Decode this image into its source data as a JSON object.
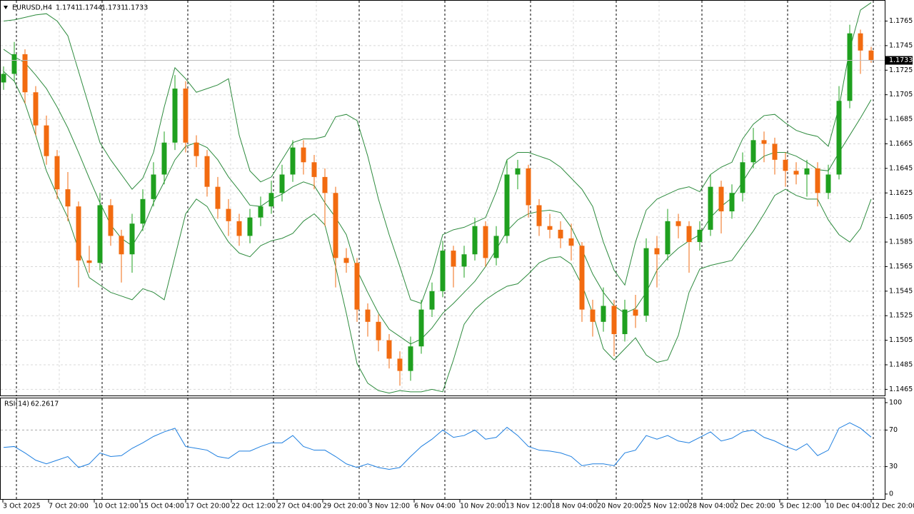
{
  "chart_data": {
    "type": "candlestick",
    "symbol": "EURUSD,H4",
    "up_color": "#1fa01f",
    "down_color": "#f26b10",
    "ylim": [
      1.146,
      1.1781
    ],
    "yticks": [
      1.1765,
      1.1745,
      1.1725,
      1.1705,
      1.1685,
      1.1665,
      1.1645,
      1.1625,
      1.1605,
      1.1585,
      1.1565,
      1.1545,
      1.1525,
      1.1505,
      1.1485,
      1.1465
    ],
    "grid": true,
    "x_labels": [
      "3 Oct 2025",
      "7 Oct 20:00",
      "10 Oct 12:00",
      "15 Oct 04:00",
      "17 Oct 20:00",
      "22 Oct 12:00",
      "27 Oct 04:00",
      "29 Oct 20:00",
      "3 Nov 12:00",
      "6 Nov 04:00",
      "10 Nov 20:00",
      "13 Nov 12:00",
      "18 Nov 04:00",
      "20 Nov 20:00",
      "25 Nov 12:00",
      "28 Nov 04:00",
      "2 Dec 20:00",
      "5 Dec 12:00",
      "10 Dec 04:00",
      "12 Dec 20:00"
    ],
    "ohlc": [
      [
        1.1715,
        1.1728,
        1.1709,
        1.1722
      ],
      [
        1.1722,
        1.1748,
        1.1716,
        1.1738
      ],
      [
        1.1738,
        1.1742,
        1.1698,
        1.1707
      ],
      [
        1.1707,
        1.1712,
        1.1672,
        1.168
      ],
      [
        1.168,
        1.1688,
        1.1648,
        1.1655
      ],
      [
        1.1655,
        1.166,
        1.162,
        1.1628
      ],
      [
        1.1628,
        1.1642,
        1.1602,
        1.1614
      ],
      [
        1.1614,
        1.1618,
        1.1548,
        1.157
      ],
      [
        1.157,
        1.1582,
        1.156,
        1.1568
      ],
      [
        1.1568,
        1.1625,
        1.1562,
        1.1615
      ],
      [
        1.1615,
        1.162,
        1.1582,
        1.159
      ],
      [
        1.159,
        1.1595,
        1.1552,
        1.1575
      ],
      [
        1.1575,
        1.1608,
        1.156,
        1.16
      ],
      [
        1.16,
        1.1628,
        1.1594,
        1.162
      ],
      [
        1.162,
        1.165,
        1.1614,
        1.164
      ],
      [
        1.164,
        1.1675,
        1.1632,
        1.1666
      ],
      [
        1.1666,
        1.1721,
        1.166,
        1.171
      ],
      [
        1.171,
        1.1716,
        1.1658,
        1.1666
      ],
      [
        1.1666,
        1.1672,
        1.1646,
        1.1655
      ],
      [
        1.1655,
        1.166,
        1.1622,
        1.163
      ],
      [
        1.163,
        1.1638,
        1.1604,
        1.1612
      ],
      [
        1.1612,
        1.162,
        1.159,
        1.1602
      ],
      [
        1.1602,
        1.1608,
        1.1582,
        1.159
      ],
      [
        1.159,
        1.1612,
        1.1584,
        1.1605
      ],
      [
        1.1605,
        1.1622,
        1.1598,
        1.1614
      ],
      [
        1.1614,
        1.1635,
        1.1608,
        1.1625
      ],
      [
        1.1625,
        1.1648,
        1.1618,
        1.164
      ],
      [
        1.164,
        1.1668,
        1.1634,
        1.1662
      ],
      [
        1.1662,
        1.1668,
        1.164,
        1.165
      ],
      [
        1.165,
        1.1656,
        1.1628,
        1.1638
      ],
      [
        1.1638,
        1.1645,
        1.1598,
        1.1625
      ],
      [
        1.1625,
        1.163,
        1.1548,
        1.1572
      ],
      [
        1.1572,
        1.158,
        1.156,
        1.1568
      ],
      [
        1.1568,
        1.1572,
        1.152,
        1.153
      ],
      [
        1.153,
        1.1535,
        1.1508,
        1.152
      ],
      [
        1.152,
        1.1526,
        1.1496,
        1.1505
      ],
      [
        1.1505,
        1.151,
        1.1482,
        1.149
      ],
      [
        1.149,
        1.1496,
        1.1468,
        1.148
      ],
      [
        1.148,
        1.1508,
        1.1472,
        1.15
      ],
      [
        1.15,
        1.1538,
        1.1494,
        1.153
      ],
      [
        1.153,
        1.1552,
        1.1524,
        1.1545
      ],
      [
        1.1545,
        1.1586,
        1.154,
        1.1578
      ],
      [
        1.1578,
        1.1582,
        1.1548,
        1.1565
      ],
      [
        1.1565,
        1.1582,
        1.1556,
        1.1575
      ],
      [
        1.1575,
        1.1605,
        1.157,
        1.1598
      ],
      [
        1.1598,
        1.1602,
        1.1565,
        1.1572
      ],
      [
        1.1572,
        1.1598,
        1.1566,
        1.159
      ],
      [
        1.159,
        1.1652,
        1.1584,
        1.164
      ],
      [
        1.164,
        1.1652,
        1.1628,
        1.1645
      ],
      [
        1.1645,
        1.1648,
        1.1605,
        1.1615
      ],
      [
        1.1615,
        1.162,
        1.159,
        1.1598
      ],
      [
        1.1598,
        1.1608,
        1.1588,
        1.1595
      ],
      [
        1.1595,
        1.1602,
        1.158,
        1.1588
      ],
      [
        1.1588,
        1.16,
        1.157,
        1.1582
      ],
      [
        1.1582,
        1.1585,
        1.152,
        1.153
      ],
      [
        1.153,
        1.1538,
        1.1508,
        1.152
      ],
      [
        1.152,
        1.1548,
        1.1512,
        1.1533
      ],
      [
        1.1533,
        1.1538,
        1.1492,
        1.151
      ],
      [
        1.151,
        1.1538,
        1.1504,
        1.153
      ],
      [
        1.153,
        1.1542,
        1.1515,
        1.1525
      ],
      [
        1.1525,
        1.1588,
        1.152,
        1.158
      ],
      [
        1.158,
        1.159,
        1.1548,
        1.1575
      ],
      [
        1.1575,
        1.1612,
        1.157,
        1.1602
      ],
      [
        1.1602,
        1.1608,
        1.1588,
        1.1598
      ],
      [
        1.1598,
        1.1602,
        1.156,
        1.1585
      ],
      [
        1.1585,
        1.1602,
        1.1578,
        1.1595
      ],
      [
        1.1595,
        1.164,
        1.159,
        1.163
      ],
      [
        1.163,
        1.1635,
        1.1592,
        1.161
      ],
      [
        1.161,
        1.1632,
        1.1604,
        1.1625
      ],
      [
        1.1625,
        1.1658,
        1.1618,
        1.165
      ],
      [
        1.165,
        1.1678,
        1.1645,
        1.1668
      ],
      [
        1.1668,
        1.1675,
        1.165,
        1.1665
      ],
      [
        1.1665,
        1.167,
        1.164,
        1.1652
      ],
      [
        1.1652,
        1.1658,
        1.163,
        1.1643
      ],
      [
        1.1643,
        1.165,
        1.1632,
        1.164
      ],
      [
        1.164,
        1.1652,
        1.1622,
        1.1645
      ],
      [
        1.1645,
        1.165,
        1.1614,
        1.1625
      ],
      [
        1.1625,
        1.1648,
        1.162,
        1.164
      ],
      [
        1.164,
        1.1712,
        1.1636,
        1.17
      ],
      [
        1.17,
        1.1762,
        1.1694,
        1.1755
      ],
      [
        1.1755,
        1.1758,
        1.1722,
        1.1741
      ],
      [
        1.1741,
        1.1744,
        1.1731,
        1.1733
      ]
    ],
    "bands": [
      {
        "color": "#2e8b3e",
        "values": [
          1.1765,
          1.1766,
          1.1768,
          1.177,
          1.1771,
          1.1765,
          1.1753,
          1.1724,
          1.1695,
          1.1666,
          1.1652,
          1.164,
          1.1628,
          1.1637,
          1.1658,
          1.1695,
          1.1727,
          1.1718,
          1.1707,
          1.171,
          1.1713,
          1.1718,
          1.1672,
          1.1643,
          1.1634,
          1.1638,
          1.1652,
          1.1666,
          1.1669,
          1.1669,
          1.1671,
          1.1687,
          1.1689,
          1.1684,
          1.1655,
          1.162,
          1.1591,
          1.1565,
          1.1538,
          1.1535,
          1.1559,
          1.1591,
          1.1595,
          1.1597,
          1.1601,
          1.1605,
          1.1626,
          1.1652,
          1.1658,
          1.1658,
          1.1655,
          1.1652,
          1.1646,
          1.1637,
          1.1628,
          1.1614,
          1.1585,
          1.1562,
          1.155,
          1.1585,
          1.1611,
          1.162,
          1.1624,
          1.1628,
          1.163,
          1.1626,
          1.164,
          1.1646,
          1.165,
          1.1669,
          1.1681,
          1.1688,
          1.1689,
          1.1682,
          1.1676,
          1.1673,
          1.1671,
          1.1663,
          1.1695,
          1.1742,
          1.1774,
          1.178
        ]
      },
      {
        "color": "#2e8b3e",
        "values": [
          1.1742,
          1.1736,
          1.1731,
          1.1721,
          1.171,
          1.1695,
          1.1678,
          1.1658,
          1.1637,
          1.1617,
          1.1599,
          1.1588,
          1.1582,
          1.1596,
          1.1617,
          1.1634,
          1.1652,
          1.1663,
          1.1666,
          1.1662,
          1.1652,
          1.1638,
          1.1627,
          1.1615,
          1.1614,
          1.162,
          1.1624,
          1.163,
          1.1634,
          1.1631,
          1.1617,
          1.1605,
          1.1591,
          1.1562,
          1.1544,
          1.1527,
          1.1514,
          1.1508,
          1.1502,
          1.1506,
          1.1515,
          1.1527,
          1.1535,
          1.1544,
          1.1553,
          1.1565,
          1.1579,
          1.1594,
          1.1603,
          1.1608,
          1.161,
          1.1611,
          1.1609,
          1.1597,
          1.1579,
          1.1559,
          1.1544,
          1.1533,
          1.1527,
          1.1531,
          1.1544,
          1.1562,
          1.1572,
          1.158,
          1.1586,
          1.1591,
          1.1605,
          1.1614,
          1.1621,
          1.1634,
          1.1648,
          1.1655,
          1.1658,
          1.1658,
          1.1655,
          1.165,
          1.1644,
          1.1643,
          1.1658,
          1.1672,
          1.1686,
          1.1701
        ]
      },
      {
        "color": "#2e8b3e",
        "values": [
          1.1724,
          1.1716,
          1.1698,
          1.1672,
          1.1643,
          1.1623,
          1.1605,
          1.1579,
          1.1556,
          1.155,
          1.1544,
          1.1541,
          1.1538,
          1.1547,
          1.1544,
          1.1538,
          1.1573,
          1.1608,
          1.162,
          1.1614,
          1.1599,
          1.1585,
          1.1576,
          1.1573,
          1.1582,
          1.1586,
          1.1588,
          1.1592,
          1.1602,
          1.1608,
          1.1599,
          1.1565,
          1.1527,
          1.1486,
          1.147,
          1.1464,
          1.1462,
          1.1464,
          1.1463,
          1.1463,
          1.1465,
          1.1463,
          1.1489,
          1.1518,
          1.153,
          1.1538,
          1.1544,
          1.1549,
          1.1551,
          1.1559,
          1.1568,
          1.1572,
          1.1573,
          1.1567,
          1.155,
          1.1527,
          1.1498,
          1.1489,
          1.1498,
          1.1507,
          1.1493,
          1.1487,
          1.1489,
          1.1509,
          1.1544,
          1.1563,
          1.1566,
          1.1568,
          1.157,
          1.1582,
          1.1594,
          1.1608,
          1.1623,
          1.1628,
          1.1623,
          1.162,
          1.162,
          1.1603,
          1.1591,
          1.1585,
          1.1596,
          1.162
        ]
      }
    ],
    "indicator": {
      "label": "RSI(14)",
      "color": "#1e7fe0",
      "ylim": [
        0,
        100
      ],
      "yticks": [
        100,
        70,
        30,
        0
      ],
      "values": [
        51,
        52,
        45,
        37,
        33,
        37,
        41,
        29,
        33,
        45,
        41,
        42,
        50,
        56,
        63,
        68,
        72,
        52,
        50,
        48,
        41,
        39,
        47,
        47,
        52,
        56,
        56,
        64,
        52,
        48,
        48,
        41,
        33,
        29,
        33,
        29,
        27,
        29,
        41,
        52,
        60,
        70,
        62,
        64,
        70,
        60,
        62,
        73,
        64,
        52,
        48,
        47,
        45,
        41,
        31,
        33,
        33,
        31,
        45,
        48,
        64,
        60,
        64,
        58,
        56,
        62,
        68,
        58,
        61,
        68,
        70,
        62,
        58,
        52,
        48,
        55,
        42,
        48,
        72,
        78,
        72,
        62.2617
      ]
    }
  }
}
